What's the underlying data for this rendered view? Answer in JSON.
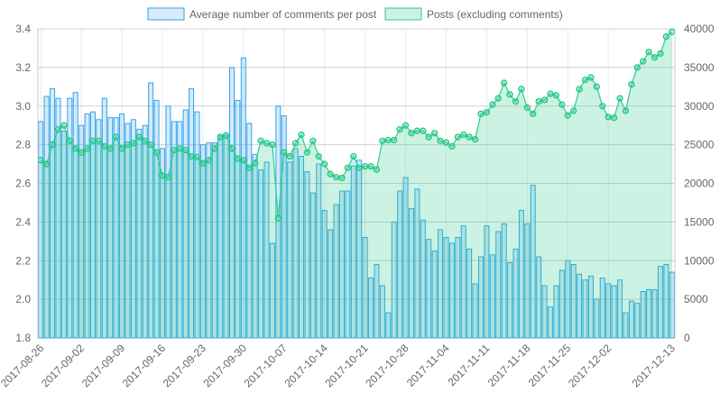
{
  "chart_data": {
    "type": "bar+area",
    "title": "",
    "legend_position": "top",
    "grid": true,
    "x_start": "2017-08-26",
    "x_tick_labels": [
      "2017-08-26",
      "2017-09-02",
      "2017-09-09",
      "2017-09-16",
      "2017-09-23",
      "2017-09-30",
      "2017-10-07",
      "2017-10-14",
      "2017-10-21",
      "2017-10-28",
      "2017-11-04",
      "2017-11-11",
      "2017-11-18",
      "2017-11-25",
      "2017-12-02",
      "2017-12-13"
    ],
    "y_left": {
      "range": [
        1.8,
        3.4
      ],
      "ticks": [
        "1.8",
        "2.0",
        "2.2",
        "2.4",
        "2.6",
        "2.8",
        "3.0",
        "3.2",
        "3.4"
      ]
    },
    "y_right": {
      "range": [
        0,
        40000
      ],
      "ticks": [
        "0",
        "5000",
        "10000",
        "15000",
        "20000",
        "25000",
        "30000",
        "35000",
        "40000"
      ]
    },
    "series": [
      {
        "name": "Average number of comments per post",
        "type": "bar",
        "axis": "left",
        "color": "#36a2eb",
        "values": [
          2.92,
          3.05,
          3.09,
          3.04,
          2.87,
          3.04,
          3.07,
          2.9,
          2.96,
          2.97,
          2.93,
          3.04,
          2.94,
          2.94,
          2.96,
          2.91,
          2.93,
          2.88,
          2.9,
          3.12,
          3.03,
          2.78,
          3.0,
          2.92,
          2.92,
          2.98,
          3.09,
          2.97,
          2.8,
          2.81,
          2.81,
          2.85,
          2.85,
          3.2,
          3.03,
          3.25,
          2.91,
          2.75,
          2.67,
          2.71,
          2.29,
          3.0,
          2.95,
          2.71,
          2.78,
          2.74,
          2.66,
          2.55,
          2.7,
          2.46,
          2.36,
          2.49,
          2.56,
          2.56,
          2.69,
          2.72,
          2.32,
          2.11,
          2.18,
          2.07,
          1.93,
          2.4,
          2.56,
          2.63,
          2.47,
          2.57,
          2.41,
          2.31,
          2.25,
          2.36,
          2.32,
          2.29,
          2.32,
          2.38,
          2.26,
          2.08,
          2.22,
          2.38,
          2.23,
          2.35,
          2.39,
          2.19,
          2.26,
          2.46,
          2.39,
          2.59,
          2.22,
          2.07,
          1.96,
          2.07,
          2.15,
          2.2,
          2.18,
          2.13,
          2.1,
          2.12,
          2.0,
          2.11,
          2.08,
          2.07,
          2.1,
          1.93,
          1.99,
          1.98,
          2.04,
          2.05,
          2.05,
          2.17,
          2.18,
          2.14
        ]
      },
      {
        "name": "Posts (excluding comments)",
        "type": "area",
        "axis": "right",
        "color": "#2ecc8f",
        "values": [
          23000,
          22500,
          25000,
          27000,
          27500,
          25500,
          24500,
          24000,
          24500,
          25500,
          25500,
          24800,
          24500,
          26000,
          24500,
          25000,
          25200,
          26000,
          25500,
          25000,
          24000,
          21000,
          20800,
          24300,
          24500,
          24300,
          23500,
          23400,
          22600,
          23000,
          24500,
          26000,
          26200,
          24500,
          23200,
          23000,
          22000,
          22600,
          25500,
          25200,
          25000,
          15500,
          24000,
          23500,
          25200,
          26300,
          24000,
          25500,
          23500,
          22500,
          21200,
          20800,
          20700,
          22000,
          23500,
          22000,
          22200,
          22200,
          21800,
          25500,
          25600,
          25600,
          27000,
          27500,
          26500,
          26800,
          26800,
          26000,
          26500,
          25500,
          25300,
          24800,
          26000,
          26300,
          26000,
          25700,
          29000,
          29200,
          30200,
          31000,
          33000,
          31500,
          30600,
          32200,
          29800,
          29000,
          30600,
          30800,
          31600,
          31400,
          30200,
          28800,
          29400,
          32200,
          33400,
          33700,
          32500,
          30000,
          28600,
          28500,
          31000,
          29400,
          32800,
          35000,
          35800,
          37000,
          36300,
          36800,
          39000,
          39600
        ]
      }
    ]
  }
}
